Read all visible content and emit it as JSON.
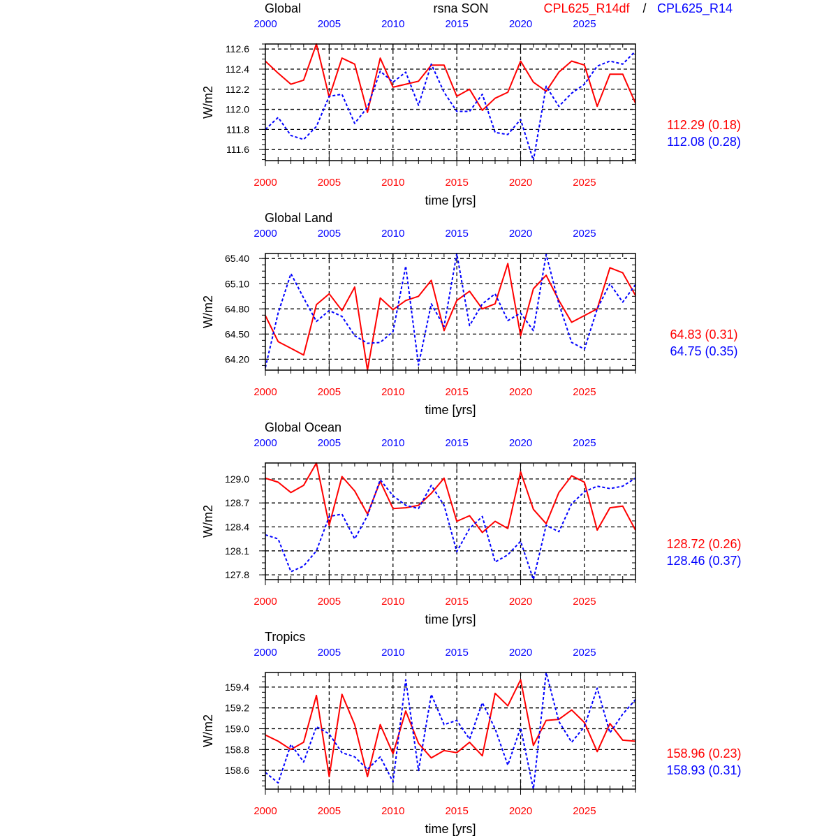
{
  "header": {
    "variable": "rsna SON",
    "legend_red": "CPL625_R14df",
    "legend_sep": "/",
    "legend_blue": "CPL625_R14"
  },
  "colors": {
    "red": "#ff0000",
    "blue": "#0000ff"
  },
  "chart_data": [
    {
      "type": "line",
      "title": "Global",
      "xlabel": "time [yrs]",
      "ylabel": "W/m2",
      "xlim": [
        2000,
        2029
      ],
      "ylim": [
        111.49,
        112.65
      ],
      "xticks": [
        2000,
        2005,
        2010,
        2015,
        2020,
        2025
      ],
      "yticks": [
        "111.6",
        "111.8",
        "112.0",
        "112.2",
        "112.4",
        "112.6"
      ],
      "grid": true,
      "stats": [
        "112.29 (0.18)",
        "112.08 (0.28)"
      ],
      "series": [
        {
          "name": "CPL625_R14df",
          "style": "solid",
          "color": "#ff0000",
          "values": [
            112.48,
            112.36,
            112.25,
            112.29,
            112.65,
            112.12,
            112.51,
            112.45,
            111.97,
            112.51,
            112.22,
            112.25,
            112.28,
            112.44,
            112.44,
            112.13,
            112.2,
            111.99,
            112.11,
            112.17,
            112.48,
            112.27,
            112.18,
            112.37,
            112.48,
            112.44,
            112.03,
            112.35,
            112.35,
            112.06
          ]
        },
        {
          "name": "CPL625_R14",
          "style": "dashed",
          "color": "#0000ff",
          "values": [
            111.8,
            111.92,
            111.74,
            111.7,
            111.83,
            112.13,
            112.15,
            111.86,
            112.02,
            112.38,
            112.27,
            112.37,
            112.04,
            112.45,
            112.17,
            111.98,
            111.98,
            112.15,
            111.77,
            111.75,
            111.9,
            111.49,
            112.23,
            112.03,
            112.16,
            112.25,
            112.43,
            112.48,
            112.45,
            112.58
          ]
        }
      ]
    },
    {
      "type": "line",
      "title": "Global Land",
      "xlabel": "time [yrs]",
      "ylabel": "W/m2",
      "xlim": [
        2000,
        2029
      ],
      "ylim": [
        64.07,
        65.46
      ],
      "xticks": [
        2000,
        2005,
        2010,
        2015,
        2020,
        2025
      ],
      "yticks": [
        "64.20",
        "64.50",
        "64.80",
        "65.10",
        "65.40"
      ],
      "grid": true,
      "stats": [
        "64.83 (0.31)",
        "64.75 (0.35)"
      ],
      "series": [
        {
          "name": "CPL625_R14df",
          "style": "solid",
          "color": "#ff0000",
          "values": [
            64.72,
            64.41,
            64.33,
            64.25,
            64.85,
            64.98,
            64.78,
            65.06,
            64.07,
            64.93,
            64.79,
            64.9,
            64.95,
            65.14,
            64.54,
            64.9,
            65.01,
            64.8,
            64.86,
            65.34,
            64.48,
            65.04,
            65.2,
            64.9,
            64.64,
            64.72,
            64.8,
            65.29,
            65.23,
            64.96
          ]
        },
        {
          "name": "CPL625_R14",
          "style": "dashed",
          "color": "#0000ff",
          "values": [
            64.1,
            64.75,
            65.22,
            64.93,
            64.65,
            64.78,
            64.71,
            64.48,
            64.39,
            64.4,
            64.53,
            65.31,
            64.13,
            64.86,
            64.59,
            65.46,
            64.6,
            64.86,
            64.98,
            64.66,
            64.75,
            64.54,
            65.45,
            64.86,
            64.4,
            64.32,
            64.8,
            65.1,
            64.88,
            65.09
          ]
        }
      ]
    },
    {
      "type": "line",
      "title": "Global Ocean",
      "xlabel": "time [yrs]",
      "ylabel": "W/m2",
      "xlim": [
        2000,
        2029
      ],
      "ylim": [
        127.74,
        129.2
      ],
      "xticks": [
        2000,
        2005,
        2010,
        2015,
        2020,
        2025
      ],
      "yticks": [
        "127.8",
        "128.1",
        "128.4",
        "128.7",
        "129.0"
      ],
      "grid": true,
      "stats": [
        "128.72 (0.26)",
        "128.46 (0.37)"
      ],
      "series": [
        {
          "name": "CPL625_R14df",
          "style": "solid",
          "color": "#ff0000",
          "values": [
            129.01,
            128.96,
            128.83,
            128.92,
            129.2,
            128.42,
            129.03,
            128.85,
            128.56,
            128.97,
            128.63,
            128.64,
            128.67,
            128.82,
            129.01,
            128.47,
            128.54,
            128.33,
            128.47,
            128.38,
            129.09,
            128.62,
            128.44,
            128.83,
            129.04,
            128.96,
            128.36,
            128.64,
            128.66,
            128.36
          ]
        },
        {
          "name": "CPL625_R14",
          "style": "dashed",
          "color": "#0000ff",
          "values": [
            128.3,
            128.25,
            127.84,
            127.91,
            128.1,
            128.53,
            128.56,
            128.25,
            128.54,
            128.99,
            128.79,
            128.67,
            128.63,
            128.92,
            128.67,
            128.09,
            128.38,
            128.53,
            127.96,
            128.05,
            128.22,
            127.74,
            128.42,
            128.34,
            128.69,
            128.84,
            128.91,
            128.88,
            128.91,
            129.01
          ]
        }
      ]
    },
    {
      "type": "line",
      "title": "Tropics",
      "xlabel": "time [yrs]",
      "ylabel": "W/m2",
      "xlim": [
        2000,
        2029
      ],
      "ylim": [
        158.42,
        159.54
      ],
      "xticks": [
        2000,
        2005,
        2010,
        2015,
        2020,
        2025
      ],
      "yticks": [
        "158.6",
        "158.8",
        "159.0",
        "159.2",
        "159.4"
      ],
      "grid": true,
      "stats": [
        "158.96 (0.23)",
        "158.93 (0.31)"
      ],
      "series": [
        {
          "name": "CPL625_R14df",
          "style": "solid",
          "color": "#ff0000",
          "values": [
            158.94,
            158.88,
            158.8,
            158.87,
            159.32,
            158.54,
            159.33,
            159.04,
            158.54,
            159.04,
            158.76,
            159.17,
            158.86,
            158.72,
            158.79,
            158.77,
            158.87,
            158.74,
            159.34,
            159.22,
            159.47,
            158.84,
            159.08,
            159.09,
            159.18,
            159.06,
            158.78,
            159.05,
            158.89,
            158.88
          ]
        },
        {
          "name": "CPL625_R14",
          "style": "dashed",
          "color": "#0000ff",
          "values": [
            158.58,
            158.48,
            158.85,
            158.68,
            159.02,
            158.95,
            158.77,
            158.73,
            158.61,
            158.73,
            158.49,
            159.47,
            158.6,
            159.33,
            159.04,
            159.08,
            158.9,
            159.25,
            159.0,
            158.65,
            159.01,
            158.42,
            159.54,
            159.07,
            158.87,
            159.02,
            159.39,
            158.96,
            159.14,
            159.28
          ]
        }
      ]
    }
  ]
}
